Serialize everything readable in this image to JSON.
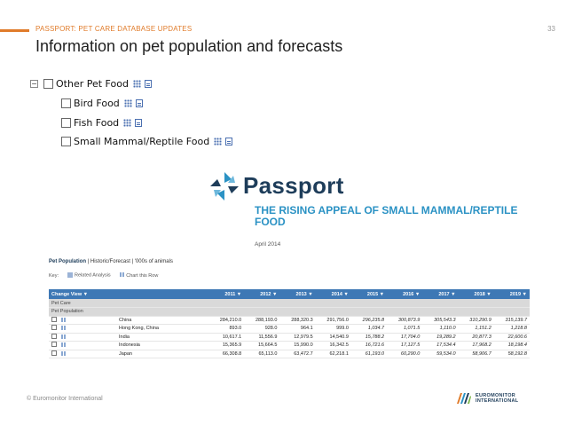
{
  "header": {
    "label": "PASSPORT: PET CARE DATABASE UPDATES",
    "slide_number": "33",
    "title": "Information on pet population and forecasts",
    "accent_color": "#e07b2a"
  },
  "tree": {
    "root": {
      "label": "Other Pet Food",
      "collapse_symbol": "−"
    },
    "children": [
      {
        "label": "Bird Food"
      },
      {
        "label": "Fish Food"
      },
      {
        "label": "Small Mammal/Reptile Food"
      }
    ]
  },
  "report": {
    "logo_text": "Passport",
    "title": "THE RISING APPEAL OF SMALL MAMMAL/REPTILE FOOD",
    "date": "April 2014",
    "title_color": "#2b92c4"
  },
  "table": {
    "heading_bold": "Pet Population",
    "heading_rest": " | Historic/Forecast | '000s of animals",
    "key_label": "Key:",
    "key_related": "Related Analysis",
    "key_chart": "Chart this Row",
    "change_view": "Change View ▼",
    "years": [
      "2011 ▼",
      "2012 ▼",
      "2013 ▼",
      "2014 ▼",
      "2015 ▼",
      "2016 ▼",
      "2017 ▼",
      "2018 ▼",
      "2019 ▼"
    ],
    "groups": [
      "Pet Care",
      "Pet Population"
    ],
    "header_color": "#3e78b5",
    "rows": [
      {
        "name": "China",
        "values": [
          "284,210.0",
          "288,193.0",
          "288,320.3",
          "291,756.0",
          "296,235.8",
          "300,873.9",
          "305,543.3",
          "310,290.9",
          "315,139.7"
        ]
      },
      {
        "name": "Hong Kong, China",
        "values": [
          "893.0",
          "928.0",
          "964.1",
          "999.0",
          "1,034.7",
          "1,071.5",
          "1,110.0",
          "1,151.2",
          "1,218.8"
        ]
      },
      {
        "name": "India",
        "values": [
          "10,617.1",
          "11,556.9",
          "12,979.5",
          "14,540.9",
          "15,788.2",
          "17,704.0",
          "19,289.2",
          "20,877.3",
          "22,600.6"
        ]
      },
      {
        "name": "Indonesia",
        "values": [
          "15,365.9",
          "15,664.5",
          "15,990.0",
          "16,342.5",
          "16,721.6",
          "17,127.5",
          "17,534.4",
          "17,968.2",
          "18,198.4"
        ]
      },
      {
        "name": "Japan",
        "values": [
          "66,308.8",
          "65,113.0",
          "63,472.7",
          "62,218.1",
          "61,193.0",
          "60,290.0",
          "59,534.0",
          "58,906.7",
          "58,192.8"
        ]
      }
    ]
  },
  "footer": {
    "copyright": "© Euromonitor International",
    "logo_line1": "EUROMONITOR",
    "logo_line2": "INTERNATIONAL"
  }
}
